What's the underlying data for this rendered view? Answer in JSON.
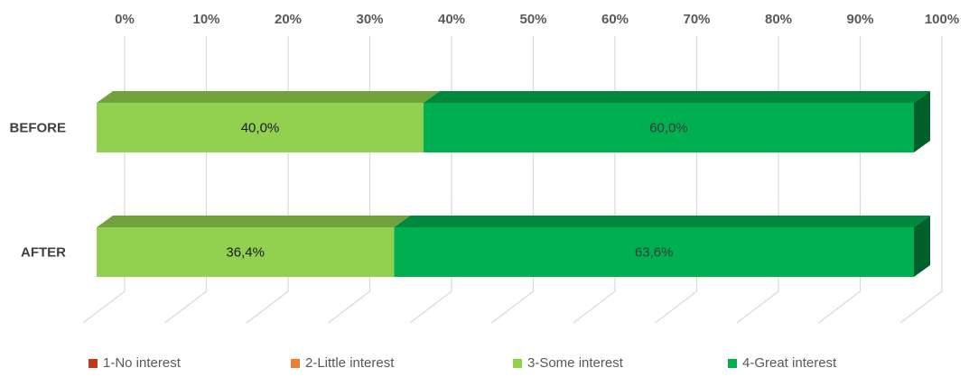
{
  "chart_data": {
    "type": "bar",
    "orientation": "horizontal",
    "stacked": "100%",
    "style": "3d",
    "categories": [
      "BEFORE",
      "AFTER"
    ],
    "series": [
      {
        "name": "1-No interest",
        "color": "#c0391b",
        "values": [
          0,
          0
        ]
      },
      {
        "name": "2-Little interest",
        "color": "#ed7d31",
        "values": [
          0,
          0
        ]
      },
      {
        "name": "3-Some interest",
        "color": "#92d050",
        "values": [
          40.0,
          36.4
        ],
        "labels": [
          "40,0%",
          "36,4%"
        ],
        "label_color": "#1a1a1a"
      },
      {
        "name": "4-Great interest",
        "color": "#00b050",
        "values": [
          60.0,
          63.6
        ],
        "labels": [
          "60,0%",
          "63,6%"
        ],
        "label_color": "#3a3a3a"
      }
    ],
    "x_ticks": [
      "0%",
      "10%",
      "20%",
      "30%",
      "40%",
      "50%",
      "60%",
      "70%",
      "80%",
      "90%",
      "100%"
    ],
    "xlim": [
      0,
      100
    ],
    "grid": true,
    "legend": "bottom"
  }
}
